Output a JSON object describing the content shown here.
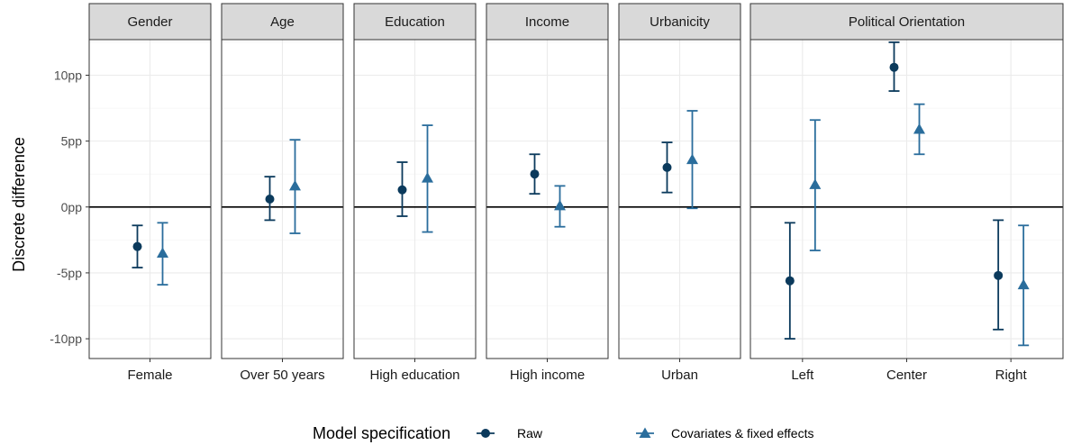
{
  "chart_data": {
    "type": "errorbar",
    "ylabel": "Discrete difference",
    "xlabel": "",
    "ylim": [
      -11.5,
      12.7
    ],
    "y_ticks": [
      -10,
      -5,
      0,
      5,
      10
    ],
    "y_tick_labels": [
      "-10pp",
      "-5pp",
      "0pp",
      "5pp",
      "10pp"
    ],
    "grid": true,
    "legend": {
      "title": "Model specification",
      "position": "bottom",
      "entries": [
        {
          "name": "Raw",
          "shape": "circle",
          "color": "#0b3a5c"
        },
        {
          "name": "Covariates & fixed effects",
          "shape": "triangle",
          "color": "#2a6d9c"
        }
      ]
    },
    "series_names": [
      "Raw",
      "Covariates & fixed effects"
    ],
    "facets": [
      {
        "title": "Gender",
        "categories": [
          {
            "label": "Female",
            "raw": {
              "estimate": -3.0,
              "low": -4.6,
              "high": -1.4
            },
            "adjusted": {
              "estimate": -3.5,
              "low": -5.9,
              "high": -1.2
            }
          }
        ]
      },
      {
        "title": "Age",
        "categories": [
          {
            "label": "Over 50 years",
            "raw": {
              "estimate": 0.6,
              "low": -1.0,
              "high": 2.3
            },
            "adjusted": {
              "estimate": 1.6,
              "low": -2.0,
              "high": 5.1
            }
          }
        ]
      },
      {
        "title": "Education",
        "categories": [
          {
            "label": "High education",
            "raw": {
              "estimate": 1.3,
              "low": -0.7,
              "high": 3.4
            },
            "adjusted": {
              "estimate": 2.2,
              "low": -1.9,
              "high": 6.2
            }
          }
        ]
      },
      {
        "title": "Income",
        "categories": [
          {
            "label": "High income",
            "raw": {
              "estimate": 2.5,
              "low": 1.0,
              "high": 4.0
            },
            "adjusted": {
              "estimate": 0.1,
              "low": -1.5,
              "high": 1.6
            }
          }
        ]
      },
      {
        "title": "Urbanicity",
        "categories": [
          {
            "label": "Urban",
            "raw": {
              "estimate": 3.0,
              "low": 1.1,
              "high": 4.9
            },
            "adjusted": {
              "estimate": 3.6,
              "low": -0.1,
              "high": 7.3
            }
          }
        ]
      },
      {
        "title": "Political Orientation",
        "categories": [
          {
            "label": "Left",
            "raw": {
              "estimate": -5.6,
              "low": -10.0,
              "high": -1.2
            },
            "adjusted": {
              "estimate": 1.7,
              "low": -3.3,
              "high": 6.6
            }
          },
          {
            "label": "Center",
            "raw": {
              "estimate": 10.6,
              "low": 8.8,
              "high": 12.5
            },
            "adjusted": {
              "estimate": 5.9,
              "low": 4.0,
              "high": 7.8
            }
          },
          {
            "label": "Right",
            "raw": {
              "estimate": -5.2,
              "low": -9.3,
              "high": -1.0
            },
            "adjusted": {
              "estimate": -5.9,
              "low": -10.5,
              "high": -1.4
            }
          }
        ]
      }
    ]
  }
}
